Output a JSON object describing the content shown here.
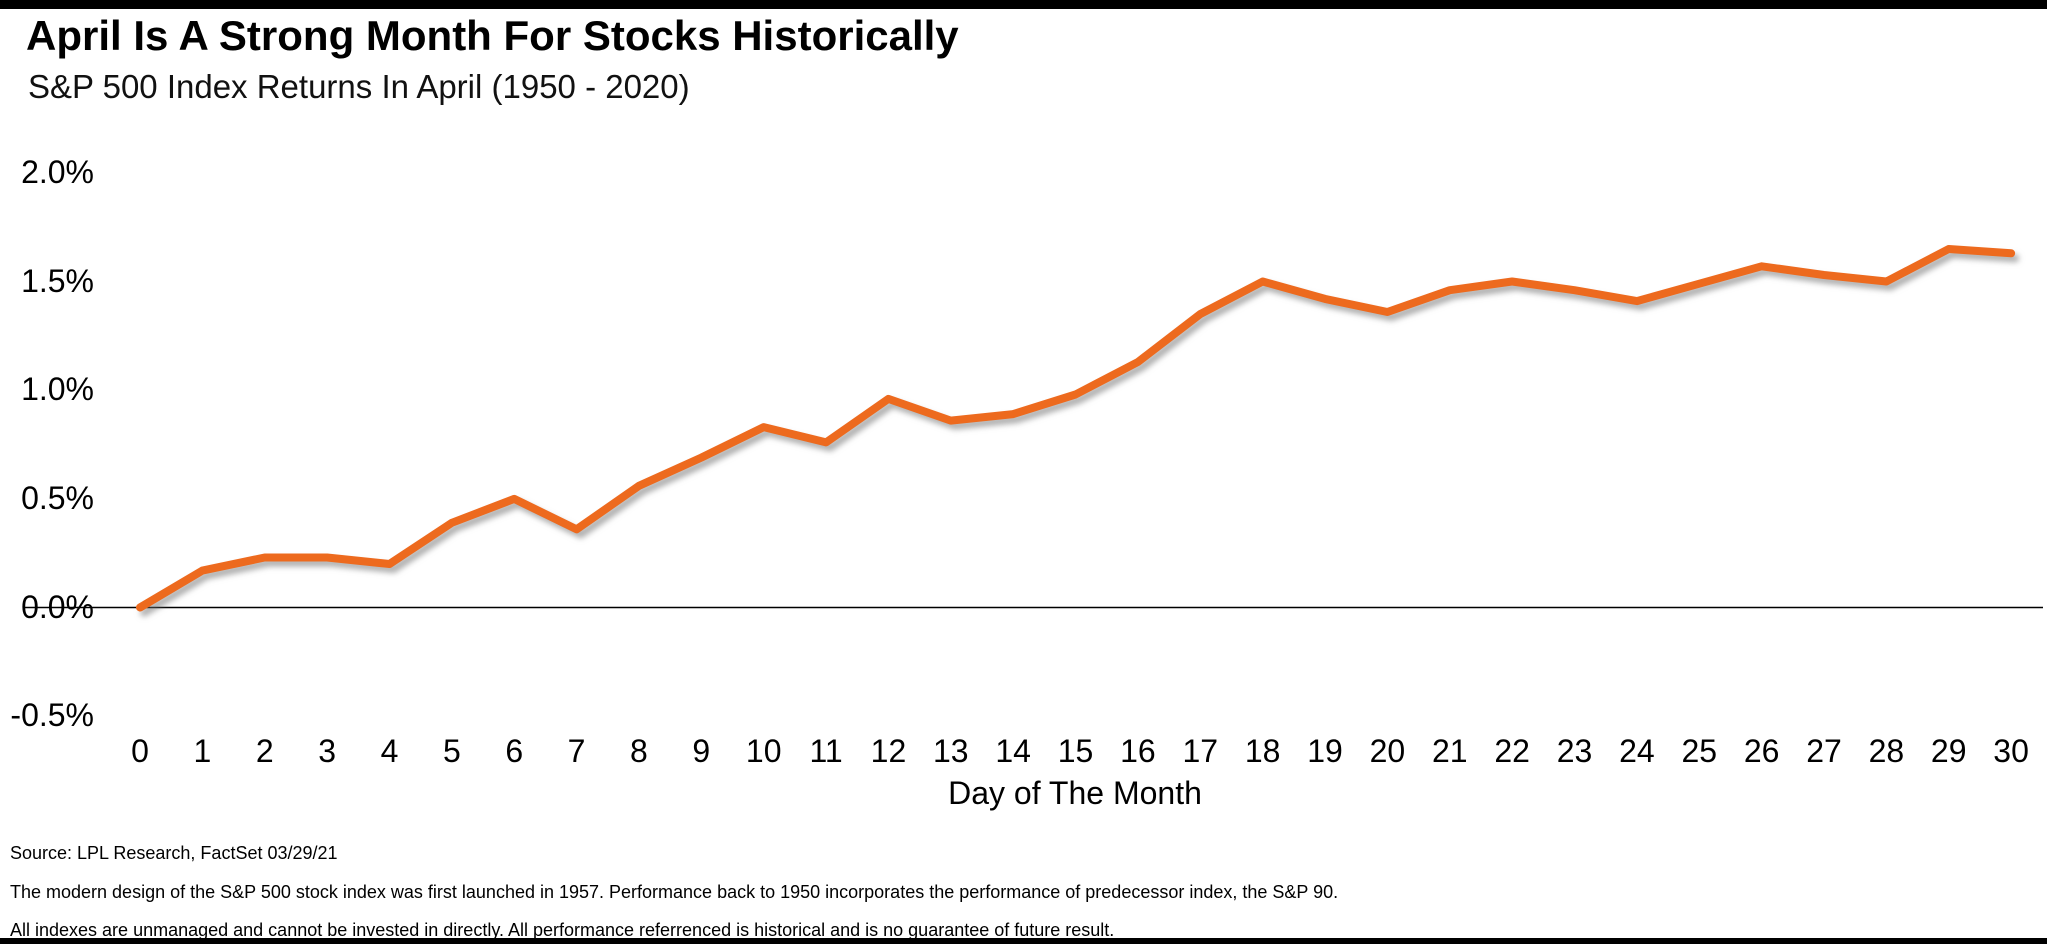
{
  "header": {
    "title": "April Is A Strong Month For Stocks Historically",
    "subtitle": "S&P 500 Index Returns In April (1950 - 2020)"
  },
  "chart_data": {
    "type": "line",
    "title": "April Is A Strong Month For Stocks Historically",
    "subtitle": "S&P 500 Index Returns In April (1950 - 2020)",
    "xlabel": "Day of The Month",
    "ylabel": "",
    "x": [
      0,
      1,
      2,
      3,
      4,
      5,
      6,
      7,
      8,
      9,
      10,
      11,
      12,
      13,
      14,
      15,
      16,
      17,
      18,
      19,
      20,
      21,
      22,
      23,
      24,
      25,
      26,
      27,
      28,
      29,
      30
    ],
    "values": [
      0.0,
      0.17,
      0.23,
      0.23,
      0.2,
      0.39,
      0.5,
      0.36,
      0.56,
      0.69,
      0.83,
      0.76,
      0.96,
      0.86,
      0.89,
      0.98,
      1.13,
      1.35,
      1.5,
      1.42,
      1.36,
      1.46,
      1.5,
      1.46,
      1.41,
      1.49,
      1.57,
      1.53,
      1.5,
      1.65,
      1.63
    ],
    "x_tick_labels": [
      "0",
      "1",
      "2",
      "3",
      "4",
      "5",
      "6",
      "7",
      "8",
      "9",
      "10",
      "11",
      "12",
      "13",
      "14",
      "15",
      "16",
      "17",
      "18",
      "19",
      "20",
      "21",
      "22",
      "23",
      "24",
      "25",
      "26",
      "27",
      "28",
      "29",
      "30"
    ],
    "y_ticks": [
      2.0,
      1.5,
      1.0,
      0.5,
      0.0,
      -0.5
    ],
    "y_tick_labels": [
      "2.0%",
      "1.5%",
      "1.0%",
      "0.5%",
      "0.0%",
      "-0.5%"
    ],
    "ylim": [
      -0.5,
      2.0
    ],
    "grid": false,
    "legend": "none",
    "line_color": "#ED6A1E",
    "axis_color": "#000000"
  },
  "footnotes": {
    "source": "Source: LPL Research, FactSet 03/29/21",
    "note1": "The modern design of the S&P 500 stock index was first launched in 1957. Performance back to 1950 incorporates the performance of predecessor index, the S&P 90.",
    "note2": "All indexes are unmanaged and cannot be invested in directly. All performance referrenced is historical and is no guarantee of future result."
  }
}
